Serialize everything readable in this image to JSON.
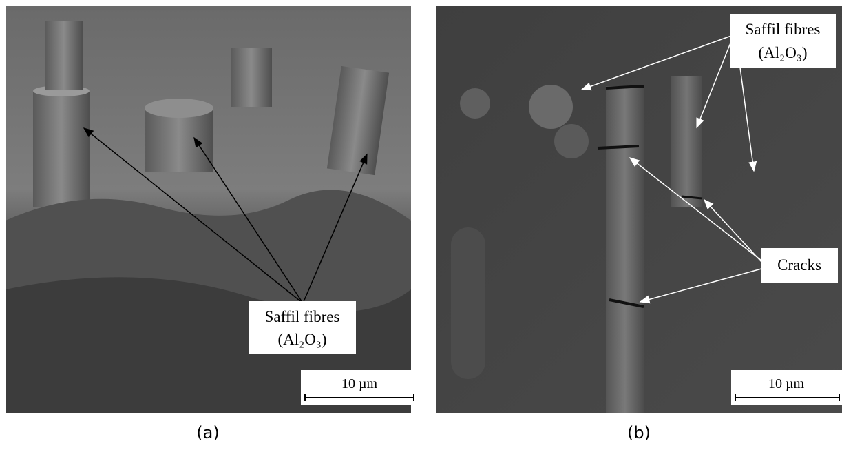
{
  "panels": [
    {
      "caption": "(a)",
      "labels": [
        {
          "lines": [
            "Saffil fibres",
            "(Al₂O₃)"
          ]
        }
      ],
      "scale_bar": "10 µm"
    },
    {
      "caption": "(b)",
      "labels": [
        {
          "lines": [
            "Saffil fibres",
            "(Al₂O₃)"
          ]
        },
        {
          "lines": [
            "Cracks"
          ]
        }
      ],
      "scale_bar": "10 µm"
    }
  ]
}
